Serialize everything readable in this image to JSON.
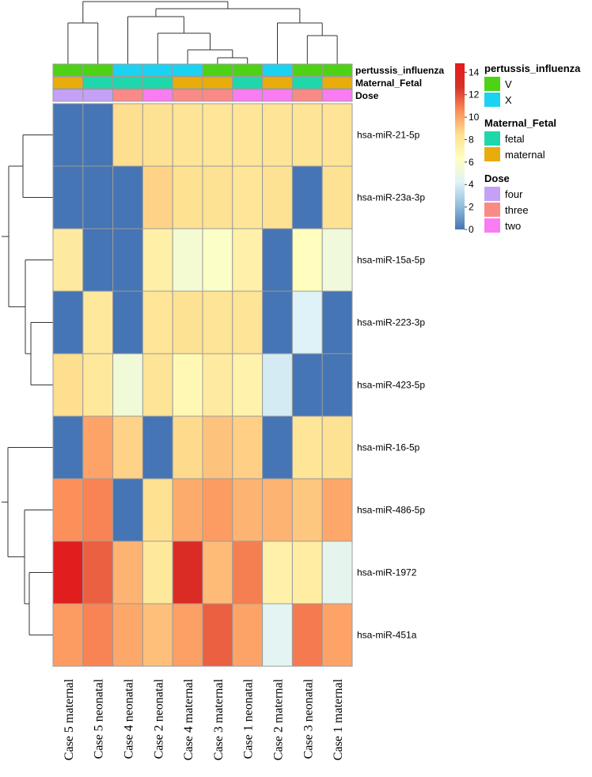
{
  "chart_data": {
    "type": "heatmap",
    "columns": [
      "Case 5 maternal",
      "Case 5 neonatal",
      "Case 4 neonatal",
      "Case 2 neonatal",
      "Case 4 maternal",
      "Case 3 maternal",
      "Case 1 neonatal",
      "Case 2 maternal",
      "Case 3 neonatal",
      "Case 1 maternal"
    ],
    "rows": [
      "hsa-miR-21-5p",
      "hsa-miR-23a-3p",
      "hsa-miR-15a-5p",
      "hsa-miR-223-3p",
      "hsa-miR-423-5p",
      "hsa-miR-16-5p",
      "hsa-miR-486-5p",
      "hsa-miR-1972",
      "hsa-miR-451a"
    ],
    "values": [
      [
        0,
        0,
        8.5,
        8.3,
        8.2,
        8.1,
        8.1,
        8.2,
        8.2,
        8.2
      ],
      [
        0,
        0,
        0,
        8.8,
        8.4,
        8.3,
        8.1,
        8.3,
        0,
        8.3
      ],
      [
        7.8,
        0,
        0,
        7.4,
        5.6,
        6.1,
        7.3,
        0,
        6.4,
        5.3
      ],
      [
        0,
        7.9,
        0,
        8.1,
        8.3,
        8.2,
        8.2,
        0,
        4.2,
        0
      ],
      [
        8.5,
        7.9,
        5.4,
        8.2,
        6.8,
        7.7,
        7.2,
        3.9,
        0,
        0
      ],
      [
        0,
        10,
        8.8,
        0,
        8.6,
        9.2,
        8.9,
        0,
        8.1,
        8.3
      ],
      [
        10.5,
        10.8,
        0,
        8.4,
        9.8,
        10.2,
        9.6,
        9.6,
        9.1,
        9.9
      ],
      [
        14.5,
        11.6,
        9.6,
        7.9,
        13.2,
        9.4,
        10.9,
        7.3,
        7.6,
        4.6
      ],
      [
        10.2,
        10.8,
        9.9,
        9.3,
        10.1,
        11.6,
        10,
        4.4,
        11,
        10
      ]
    ],
    "color_scale": {
      "min": 0,
      "max": 14.8,
      "ticks": [
        0,
        2,
        4,
        6,
        8,
        10,
        12,
        14
      ],
      "stops": [
        "#4575B4",
        "#91BFDB",
        "#E0F3F8",
        "#FFFFBF",
        "#FEE090",
        "#FC8D59",
        "#D73027",
        "#E41A1C"
      ]
    },
    "annotations": [
      {
        "name": "pertussis_influenza",
        "values": [
          "V",
          "V",
          "X",
          "X",
          "X",
          "V",
          "V",
          "X",
          "V",
          "V"
        ]
      },
      {
        "name": "Maternal_Fetal",
        "values": [
          "maternal",
          "fetal",
          "fetal",
          "fetal",
          "maternal",
          "maternal",
          "fetal",
          "maternal",
          "fetal",
          "maternal"
        ]
      },
      {
        "name": "Dose",
        "values": [
          "four",
          "four",
          "three",
          "two",
          "three",
          "three",
          "two",
          "two",
          "three",
          "two"
        ]
      }
    ],
    "legend": [
      {
        "title": "pertussis_influenza",
        "items": [
          {
            "label": "V",
            "color": "#4DD215"
          },
          {
            "label": "X",
            "color": "#1CD2F1"
          }
        ]
      },
      {
        "title": "Maternal_Fetal",
        "items": [
          {
            "label": "fetal",
            "color": "#1ED7AA"
          },
          {
            "label": "maternal",
            "color": "#E8AD0C"
          }
        ]
      },
      {
        "title": "Dose",
        "items": [
          {
            "label": "four",
            "color": "#C4A1F7"
          },
          {
            "label": "three",
            "color": "#FA8A85"
          },
          {
            "label": "two",
            "color": "#F97CF2"
          }
        ]
      }
    ]
  }
}
